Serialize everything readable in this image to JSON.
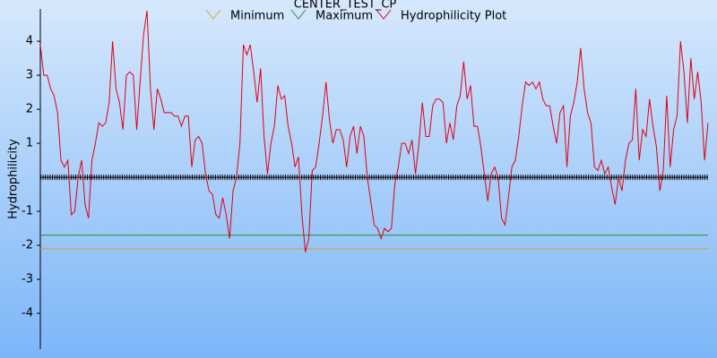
{
  "chart_data": {
    "type": "line",
    "title": "CENTER_TEST_CP",
    "y_label": "Hydrophilicity",
    "ylim": [
      -5.05,
      4.95
    ],
    "yticks": [
      -4,
      -3,
      -2,
      -1,
      1,
      2,
      3,
      4
    ],
    "series": [
      {
        "name": "Minimum",
        "color": "#e0a030",
        "values": [
          -2.1
        ]
      },
      {
        "name": "Maximum",
        "color": "#20902a",
        "values": [
          -1.7
        ]
      },
      {
        "name": "Hydrophilicity Plot",
        "color": "#e00010",
        "values": [
          3.9,
          3.0,
          3.0,
          2.6,
          2.4,
          1.9,
          0.5,
          0.3,
          0.5,
          -1.1,
          -1.0,
          0,
          0.5,
          -0.8,
          -1.2,
          0.5,
          1.0,
          1.6,
          1.5,
          1.6,
          2.2,
          4.0,
          2.6,
          2.2,
          1.4,
          3.0,
          3.1,
          3.0,
          1.4,
          2.8,
          4.2,
          4.9,
          2.6,
          1.4,
          2.6,
          2.3,
          1.9,
          1.9,
          1.9,
          1.8,
          1.8,
          1.5,
          1.8,
          1.8,
          0.3,
          1.1,
          1.2,
          1.0,
          0.1,
          -0.4,
          -0.5,
          -1.1,
          -1.2,
          -0.6,
          -1.1,
          -1.8,
          -0.4,
          0,
          1.0,
          3.9,
          3.6,
          3.9,
          3.1,
          2.2,
          3.2,
          1.2,
          0.1,
          1.0,
          1.5,
          2.7,
          2.3,
          2.4,
          1.5,
          1.0,
          0.3,
          0.6,
          -1.1,
          -2.2,
          -1.8,
          0.2,
          0.3,
          1.0,
          1.8,
          2.8,
          1.7,
          1.0,
          1.4,
          1.4,
          1.1,
          0.3,
          1.2,
          1.5,
          0.7,
          1.5,
          1.2,
          0,
          -0.7,
          -1.4,
          -1.5,
          -1.8,
          -1.5,
          -1.6,
          -1.5,
          -0.2,
          0.3,
          1.0,
          1.0,
          0.7,
          1.1,
          0.1,
          1.0,
          2.2,
          1.2,
          1.2,
          2.1,
          2.3,
          2.3,
          2.2,
          1.0,
          1.6,
          1.1,
          2.1,
          2.4,
          3.4,
          2.3,
          2.7,
          1.5,
          1.5,
          0.9,
          0.1,
          -0.7,
          0.1,
          0.3,
          0,
          -1.2,
          -1.4,
          -0.6,
          0.3,
          0.5,
          1.2,
          2.1,
          2.8,
          2.7,
          2.8,
          2.6,
          2.8,
          2.3,
          2.1,
          2.1,
          1.5,
          1.0,
          1.9,
          2.1,
          0.3,
          1.8,
          2.2,
          2.8,
          3.8,
          2.6,
          1.9,
          1.6,
          0.3,
          0.2,
          0.5,
          0.1,
          0.3,
          -0.3,
          -0.8,
          0,
          -0.4,
          0.5,
          1.0,
          1.1,
          2.6,
          0.5,
          1.4,
          1.2,
          2.3,
          1.5,
          0.9,
          -0.4,
          0.2,
          2.4,
          0.3,
          1.4,
          1.8,
          4.0,
          3.1,
          1.6,
          3.5,
          2.3,
          3.1,
          2.2,
          0.5,
          1.6
        ]
      }
    ]
  }
}
